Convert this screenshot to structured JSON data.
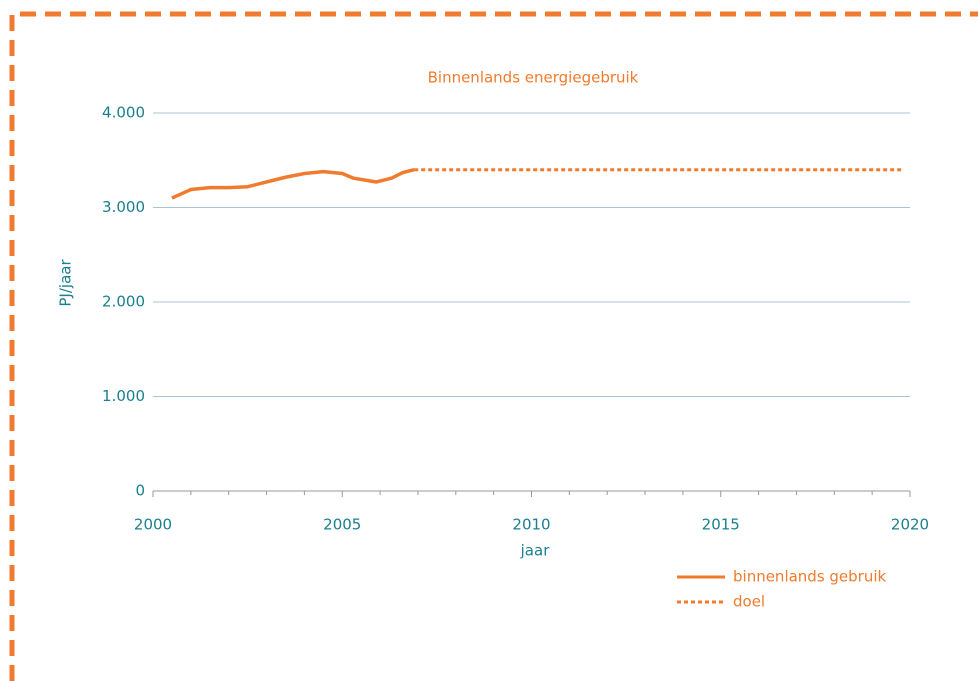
{
  "chart_data": {
    "type": "line",
    "title": "Binnenlands energiegebruik",
    "xlabel": "jaar",
    "ylabel": "PJ/jaar",
    "series": [
      {
        "name": "binnenlands gebruik",
        "color": "#f07b2e",
        "style": "solid",
        "x": [
          2000.5,
          2001,
          2001.5,
          2002,
          2002.5,
          2003,
          2003.5,
          2004,
          2004.5,
          2005,
          2005.3,
          2005.9,
          2006.3,
          2006.6,
          2006.9
        ],
        "values": [
          3100,
          3190,
          3210,
          3210,
          3220,
          3270,
          3320,
          3360,
          3380,
          3360,
          3310,
          3270,
          3310,
          3370,
          3400
        ]
      },
      {
        "name": "doel",
        "color": "#f07b2e",
        "style": "dotted",
        "x": [
          2006.9,
          2019.8
        ],
        "values": [
          3400,
          3400
        ]
      }
    ],
    "xlim": [
      2000,
      2020
    ],
    "xticks": [
      2000,
      2005,
      2010,
      2015,
      2020
    ],
    "xminorticks": [
      2001,
      2002,
      2003,
      2004,
      2006,
      2007,
      2008,
      2009,
      2011,
      2012,
      2013,
      2014,
      2016,
      2017,
      2018,
      2019
    ],
    "ylim": [
      0,
      4000
    ],
    "yticks": [
      0,
      {
        "value": 1000,
        "label": "1.000"
      },
      {
        "value": 2000,
        "label": "2.000"
      },
      {
        "value": 3000,
        "label": "3.000"
      },
      {
        "value": 4000,
        "label": "4.000"
      }
    ],
    "grid": true,
    "legend": "bottom-right"
  }
}
